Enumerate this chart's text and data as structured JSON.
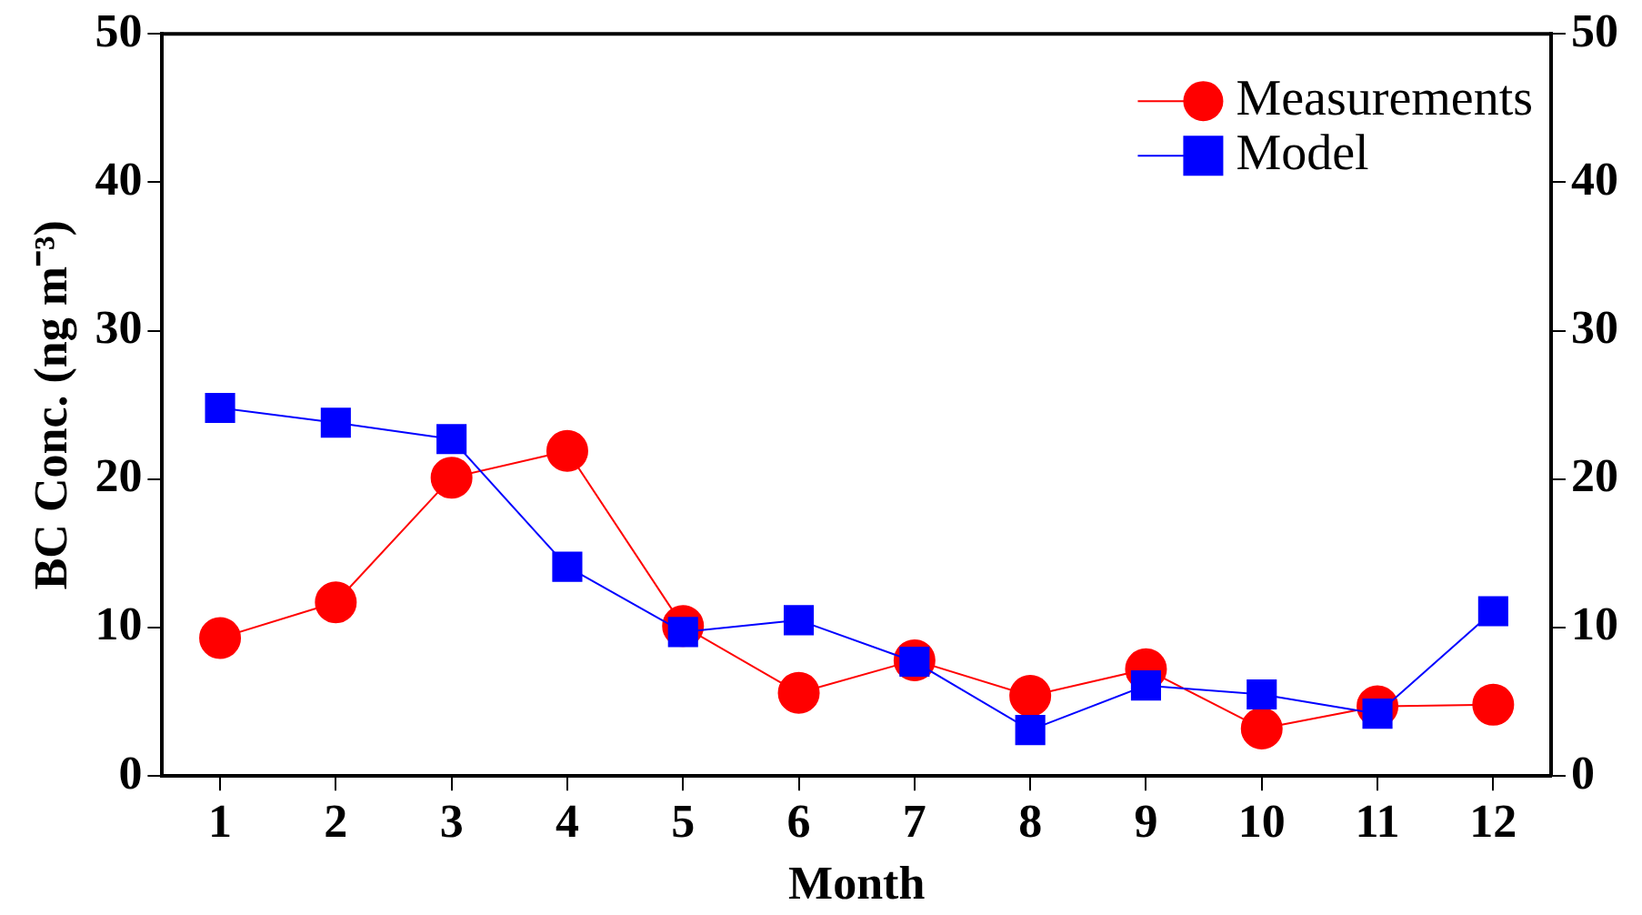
{
  "chart_data": {
    "type": "line",
    "xlabel": "Month",
    "ylabel": "BC Conc. (ng m⁻³)",
    "x": [
      1,
      2,
      3,
      4,
      5,
      6,
      7,
      8,
      9,
      10,
      11,
      12
    ],
    "series": [
      {
        "name": "Measurements",
        "color": "#ff0000",
        "marker": "circle",
        "values": [
          9.3,
          11.7,
          20.1,
          21.9,
          10.1,
          5.6,
          7.8,
          5.4,
          7.2,
          3.2,
          4.7,
          4.8
        ]
      },
      {
        "name": "Model",
        "color": "#0000ff",
        "marker": "square",
        "values": [
          24.8,
          23.8,
          22.7,
          14.1,
          9.7,
          10.5,
          7.7,
          3.1,
          6.1,
          5.5,
          4.2,
          11.1
        ]
      }
    ],
    "xlim": [
      0.5,
      12.5
    ],
    "xticks": [
      1,
      2,
      3,
      4,
      5,
      6,
      7,
      8,
      9,
      10,
      11,
      12
    ],
    "ylim": [
      0,
      50
    ],
    "yticks": [
      0,
      10,
      20,
      30,
      40,
      50
    ],
    "y2lim": [
      0,
      50
    ],
    "y2ticks": [
      0,
      10,
      20,
      30,
      40,
      50
    ],
    "grid": false,
    "legend": "top right"
  }
}
